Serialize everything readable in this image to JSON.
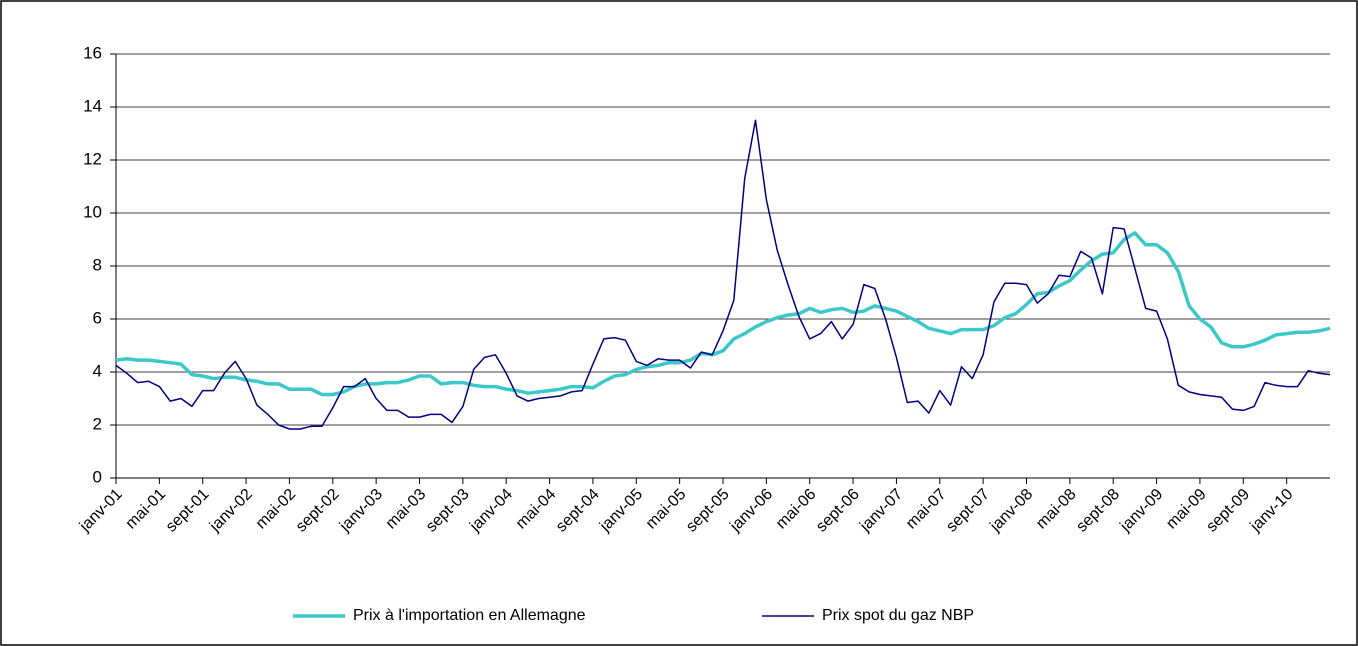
{
  "chart_data": {
    "type": "line",
    "categories": [
      "janv-01",
      null,
      null,
      null,
      "mai-01",
      null,
      null,
      null,
      "sept-01",
      null,
      null,
      null,
      "janv-02",
      null,
      null,
      null,
      "mai-02",
      null,
      null,
      null,
      "sept-02",
      null,
      null,
      null,
      "janv-03",
      null,
      null,
      null,
      "mai-03",
      null,
      null,
      null,
      "sept-03",
      null,
      null,
      null,
      "janv-04",
      null,
      null,
      null,
      "mai-04",
      null,
      null,
      null,
      "sept-04",
      null,
      null,
      null,
      "janv-05",
      null,
      null,
      null,
      "mai-05",
      null,
      null,
      null,
      "sept-05",
      null,
      null,
      null,
      "janv-06",
      null,
      null,
      null,
      "mai-06",
      null,
      null,
      null,
      "sept-06",
      null,
      null,
      null,
      "janv-07",
      null,
      null,
      null,
      "mai-07",
      null,
      null,
      null,
      "sept-07",
      null,
      null,
      null,
      "janv-08",
      null,
      null,
      null,
      "mai-08",
      null,
      null,
      null,
      "sept-08",
      null,
      null,
      null,
      "janv-09",
      null,
      null,
      null,
      "mai-09",
      null,
      null,
      null,
      "sept-09",
      null,
      null,
      null,
      "janv-10",
      null,
      null,
      null,
      null
    ],
    "series": [
      {
        "name": "Prix à l'importation en Allemagne",
        "color": "#3cc8c8",
        "width": 3.5,
        "values": [
          4.45,
          4.5,
          4.45,
          4.45,
          4.4,
          4.35,
          4.3,
          3.9,
          3.85,
          3.75,
          3.8,
          3.8,
          3.7,
          3.65,
          3.55,
          3.55,
          3.35,
          3.35,
          3.35,
          3.15,
          3.15,
          3.25,
          3.45,
          3.55,
          3.55,
          3.6,
          3.6,
          3.7,
          3.85,
          3.85,
          3.55,
          3.6,
          3.6,
          3.5,
          3.45,
          3.45,
          3.35,
          3.3,
          3.2,
          3.25,
          3.3,
          3.35,
          3.45,
          3.45,
          3.4,
          3.65,
          3.85,
          3.9,
          4.1,
          4.2,
          4.25,
          4.35,
          4.35,
          4.45,
          4.7,
          4.65,
          4.8,
          5.25,
          5.45,
          5.7,
          5.9,
          6.05,
          6.15,
          6.2,
          6.4,
          6.25,
          6.35,
          6.4,
          6.25,
          6.3,
          6.5,
          6.4,
          6.3,
          6.1,
          5.9,
          5.65,
          5.55,
          5.45,
          5.6,
          5.6,
          5.6,
          5.75,
          6.05,
          6.2,
          6.55,
          6.95,
          7.0,
          7.25,
          7.45,
          7.85,
          8.2,
          8.45,
          8.5,
          9.0,
          9.25,
          8.8,
          8.8,
          8.5,
          7.8,
          6.5,
          6.0,
          5.7,
          5.1,
          4.95,
          4.95,
          5.05,
          5.2,
          5.4,
          5.45,
          5.5,
          5.5,
          5.55,
          5.65
        ]
      },
      {
        "name": "Prix spot du gaz NBP",
        "color": "#000080",
        "width": 1.5,
        "values": [
          4.25,
          3.95,
          3.6,
          3.65,
          3.45,
          2.9,
          3.0,
          2.7,
          3.3,
          3.3,
          3.95,
          4.4,
          3.75,
          2.75,
          2.4,
          2.0,
          1.85,
          1.85,
          1.95,
          1.95,
          2.65,
          3.45,
          3.45,
          3.75,
          3.0,
          2.55,
          2.55,
          2.3,
          2.3,
          2.4,
          2.4,
          2.1,
          2.7,
          4.1,
          4.55,
          4.65,
          3.95,
          3.1,
          2.9,
          3.0,
          3.05,
          3.1,
          3.25,
          3.3,
          4.3,
          5.25,
          5.3,
          5.2,
          4.4,
          4.25,
          4.5,
          4.45,
          4.45,
          4.15,
          4.75,
          4.65,
          5.55,
          6.7,
          11.3,
          13.5,
          10.5,
          8.6,
          7.3,
          6.1,
          5.25,
          5.45,
          5.9,
          5.25,
          5.8,
          7.3,
          7.15,
          6.0,
          4.55,
          2.85,
          2.9,
          2.45,
          3.3,
          2.75,
          4.2,
          3.75,
          4.65,
          6.65,
          7.35,
          7.35,
          7.3,
          6.6,
          6.95,
          7.65,
          7.6,
          8.55,
          8.3,
          6.95,
          9.45,
          9.4,
          7.9,
          6.4,
          6.3,
          5.25,
          3.5,
          3.25,
          3.15,
          3.1,
          3.05,
          2.6,
          2.55,
          2.7,
          3.6,
          3.5,
          3.45,
          3.45,
          4.05,
          3.95,
          3.9
        ]
      }
    ],
    "ylim": [
      0,
      16
    ],
    "yticks": [
      0,
      2,
      4,
      6,
      8,
      10,
      12,
      14,
      16
    ],
    "grid": true
  }
}
